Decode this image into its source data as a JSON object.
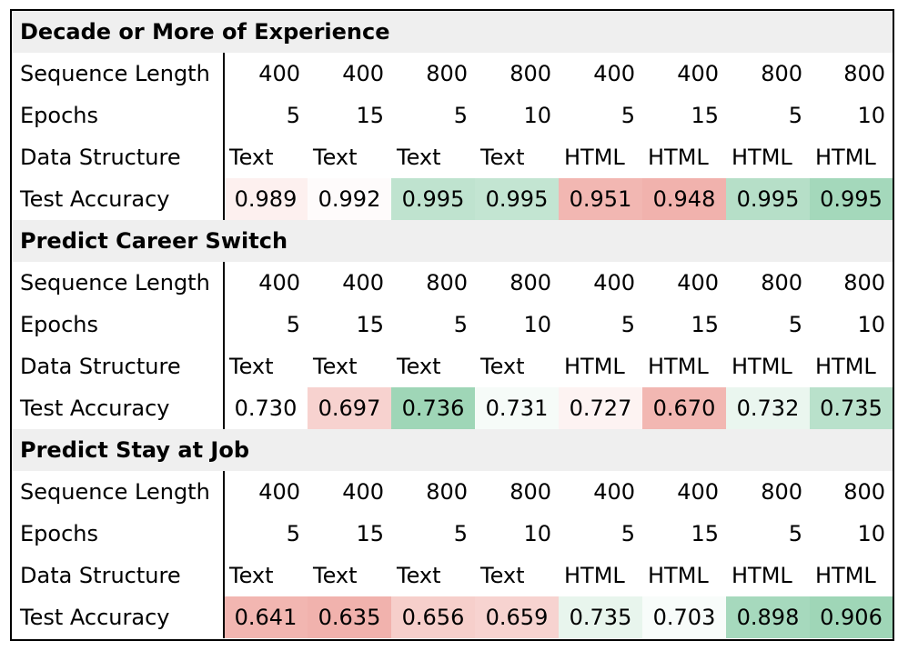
{
  "chart_data": {
    "type": "table",
    "row_labels": {
      "seq": "Sequence Length",
      "epochs": "Epochs",
      "ds": "Data Structure",
      "acc": "Test Accuracy"
    },
    "sections": [
      {
        "title": "Decade or More of Experience",
        "sequence_length": [
          400,
          400,
          800,
          800,
          400,
          400,
          800,
          800
        ],
        "epochs": [
          5,
          15,
          5,
          10,
          5,
          15,
          5,
          10
        ],
        "data_structure": [
          "Text",
          "Text",
          "Text",
          "Text",
          "HTML",
          "HTML",
          "HTML",
          "HTML"
        ],
        "test_accuracy": [
          0.989,
          0.992,
          0.995,
          0.995,
          0.951,
          0.948,
          0.995,
          0.995
        ],
        "test_accuracy_text": [
          "0.989",
          "0.992",
          "0.995",
          "0.995",
          "0.951",
          "0.948",
          "0.995",
          "0.995"
        ],
        "cell_colors": [
          "#fdf0ef",
          "#fefbfb",
          "#bfe3cf",
          "#c3e5d2",
          "#f2b7b2",
          "#f1b2ad",
          "#b6dfc8",
          "#a4d8bb"
        ]
      },
      {
        "title": "Predict Career Switch",
        "sequence_length": [
          400,
          400,
          800,
          800,
          400,
          400,
          800,
          800
        ],
        "epochs": [
          5,
          15,
          5,
          10,
          5,
          15,
          5,
          10
        ],
        "data_structure": [
          "Text",
          "Text",
          "Text",
          "Text",
          "HTML",
          "HTML",
          "HTML",
          "HTML"
        ],
        "test_accuracy": [
          0.73,
          0.697,
          0.736,
          0.731,
          0.727,
          0.67,
          0.732,
          0.735
        ],
        "test_accuracy_text": [
          "0.730",
          "0.697",
          "0.736",
          "0.731",
          "0.727",
          "0.670",
          "0.732",
          "0.735"
        ],
        "cell_colors": [
          "#ffffff",
          "#f7d2cf",
          "#9fd6b7",
          "#f6fbf8",
          "#fdf3f2",
          "#f2b7b2",
          "#eaf6ef",
          "#b9e1cb"
        ]
      },
      {
        "title": "Predict Stay at Job",
        "sequence_length": [
          400,
          400,
          800,
          800,
          400,
          400,
          800,
          800
        ],
        "epochs": [
          5,
          15,
          5,
          10,
          5,
          15,
          5,
          10
        ],
        "data_structure": [
          "Text",
          "Text",
          "Text",
          "Text",
          "HTML",
          "HTML",
          "HTML",
          "HTML"
        ],
        "test_accuracy": [
          0.641,
          0.635,
          0.656,
          0.659,
          0.735,
          0.703,
          0.898,
          0.906
        ],
        "test_accuracy_text": [
          "0.641",
          "0.635",
          "0.656",
          "0.659",
          "0.735",
          "0.703",
          "0.898",
          "0.906"
        ],
        "cell_colors": [
          "#f2b6b1",
          "#f1b2ad",
          "#f6cfcb",
          "#f7d3d0",
          "#e8f5ed",
          "#f8fcfa",
          "#a6d9bd",
          "#9fd6b7"
        ]
      }
    ]
  }
}
